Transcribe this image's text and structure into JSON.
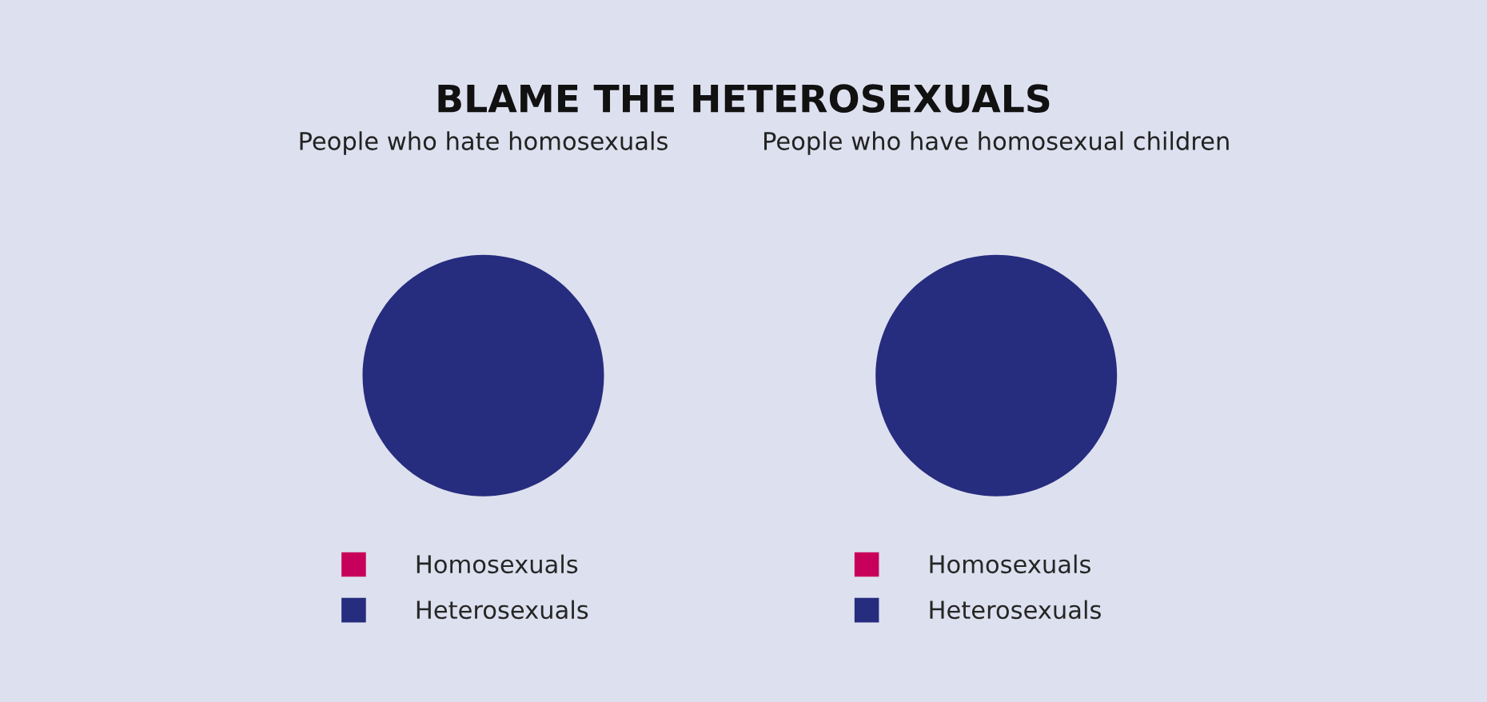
{
  "chart_data": [
    {
      "type": "pie",
      "title": "BLAME THE HETEROSEXUALS",
      "subtitle": "People who hate homosexuals",
      "categories": [
        "Homosexuals",
        "Heterosexuals"
      ],
      "values": [
        0,
        100
      ],
      "colors": [
        "#c7005b",
        "#262c7e"
      ],
      "legend": "bottom"
    },
    {
      "type": "pie",
      "subtitle": "People who have homosexual children",
      "categories": [
        "Homosexuals",
        "Heterosexuals"
      ],
      "values": [
        0,
        100
      ],
      "colors": [
        "#c7005b",
        "#262c7e"
      ],
      "legend": "bottom"
    }
  ]
}
